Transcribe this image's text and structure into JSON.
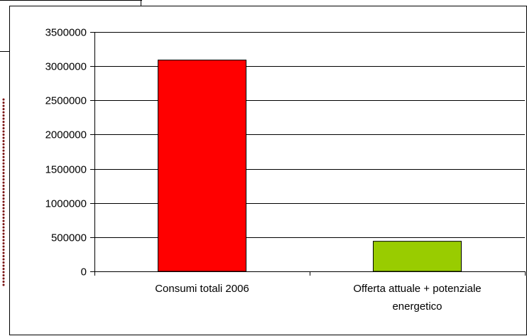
{
  "chart_data": {
    "type": "bar",
    "title": "",
    "xlabel": "",
    "ylabel": "",
    "categories": [
      [
        "Consumi totali 2006"
      ],
      [
        "Offerta attuale + potenziale",
        "energetico"
      ]
    ],
    "values": [
      3090000,
      440000
    ],
    "bar_colors": [
      "#ff0000",
      "#99cc00"
    ],
    "ylim": [
      0,
      3500000
    ],
    "yticks": [
      0,
      500000,
      1000000,
      1500000,
      2000000,
      2500000,
      3000000,
      3500000
    ],
    "grid": true,
    "legend": "none"
  },
  "colors": {
    "frame": "#000000",
    "gridline": "#000000",
    "dotted_border": "#7a1414"
  }
}
